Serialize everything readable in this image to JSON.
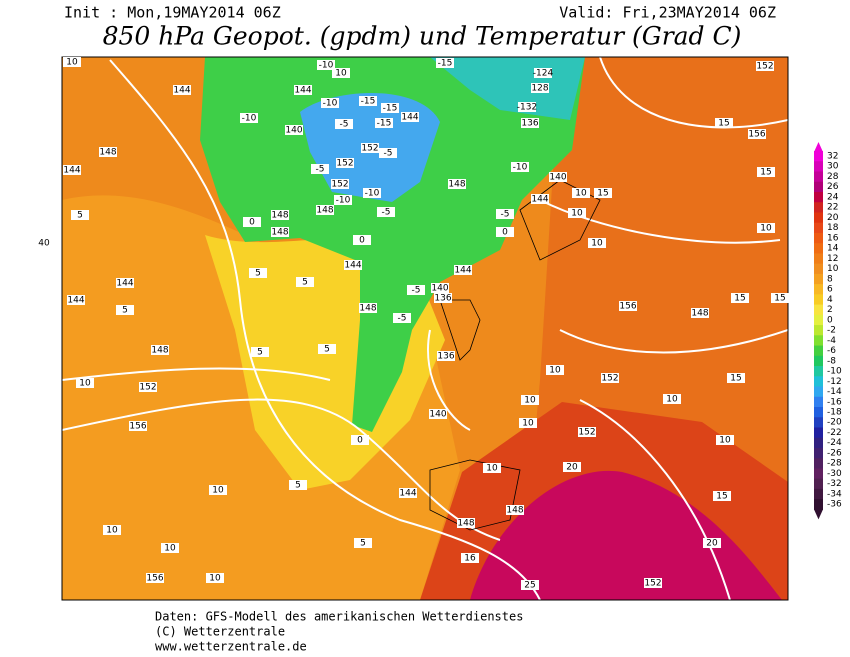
{
  "header": {
    "init": "Init : Mon,19MAY2014 06Z",
    "valid": "Valid: Fri,23MAY2014 06Z",
    "title": "850 hPa Geopot. (gpdm) und Temperatur (Grad C)"
  },
  "colorbar": {
    "ticks": [
      32,
      30,
      28,
      26,
      24,
      22,
      20,
      18,
      16,
      14,
      12,
      10,
      8,
      6,
      4,
      2,
      0,
      -2,
      -4,
      -6,
      -8,
      -10,
      -12,
      -14,
      -16,
      -18,
      -20,
      -22,
      -24,
      -26,
      -28,
      -30,
      -32,
      -34,
      -36
    ]
  },
  "map": {
    "contour_labels": [
      10,
      144,
      148,
      144,
      5,
      40,
      144,
      144,
      5,
      148,
      10,
      152,
      156,
      10,
      10,
      10,
      156,
      10,
      5,
      5,
      5,
      5,
      5,
      5,
      0,
      148,
      148,
      148,
      144,
      148,
      0,
      140,
      144,
      148,
      148,
      16,
      25,
      20,
      152,
      10,
      10,
      10,
      10,
      148,
      144,
      140,
      136,
      136,
      -5,
      -5,
      0,
      -5,
      -10,
      152,
      152,
      -10,
      -5,
      140,
      -10,
      144,
      -10,
      10,
      -10,
      -5,
      -15,
      -15,
      -15,
      144,
      152,
      -5,
      -15,
      -124,
      128,
      -132,
      136,
      -10,
      140,
      144,
      10,
      10,
      15,
      -5,
      0,
      10,
      156,
      152,
      148,
      15,
      15,
      15,
      10,
      10,
      15,
      20,
      152,
      152,
      15,
      156,
      15,
      10
    ]
  },
  "footer": {
    "lines": [
      "Daten: GFS-Modell des amerikanischen Wetterdienstes",
      "(C) Wetterzentrale",
      "www.wetterzentrale.de"
    ]
  }
}
